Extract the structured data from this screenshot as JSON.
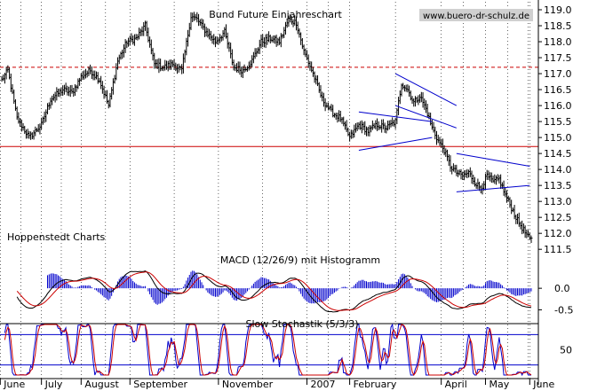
{
  "chart_data": [
    {
      "type": "candlestick",
      "title": "Bund Future Einjahreschart",
      "watermark": "www.buero-dr-schulz.de",
      "source_label": "Hoppenstedt Charts",
      "x_labels": [
        "June",
        "July",
        "August",
        "September",
        "November",
        "2007",
        "February",
        "April",
        "May",
        "June"
      ],
      "y_ticks": [
        111.5,
        112.0,
        112.5,
        113.0,
        113.5,
        114.0,
        114.5,
        115.0,
        115.5,
        116.0,
        116.5,
        117.0,
        117.5,
        118.0,
        118.5,
        119.0
      ],
      "ylim": [
        111.2,
        119.25
      ],
      "y_tick_labels": [
        "111.5",
        "112.0",
        "112.5",
        "113.0",
        "113.5",
        "114.0",
        "114.5",
        "115.0",
        "115.5",
        "116.0",
        "116.5",
        "117.0",
        "117.5",
        "118.0",
        "118.5",
        "119.0"
      ],
      "keypoints": [
        [
          0,
          116.8
        ],
        [
          4,
          117.1
        ],
        [
          10,
          115.6
        ],
        [
          18,
          115.0
        ],
        [
          26,
          115.4
        ],
        [
          32,
          116.2
        ],
        [
          40,
          116.5
        ],
        [
          46,
          116.4
        ],
        [
          52,
          116.9
        ],
        [
          58,
          117.1
        ],
        [
          64,
          116.8
        ],
        [
          70,
          116.0
        ],
        [
          76,
          117.4
        ],
        [
          82,
          118.0
        ],
        [
          88,
          118.1
        ],
        [
          94,
          118.5
        ],
        [
          100,
          117.3
        ],
        [
          106,
          117.2
        ],
        [
          112,
          117.3
        ],
        [
          118,
          117.1
        ],
        [
          124,
          118.8
        ],
        [
          128,
          118.7
        ],
        [
          134,
          118.3
        ],
        [
          140,
          118.0
        ],
        [
          146,
          118.3
        ],
        [
          152,
          117.2
        ],
        [
          158,
          117.1
        ],
        [
          164,
          117.4
        ],
        [
          170,
          118.0
        ],
        [
          176,
          118.1
        ],
        [
          182,
          118.0
        ],
        [
          188,
          118.7
        ],
        [
          193,
          118.6
        ],
        [
          198,
          117.7
        ],
        [
          204,
          117.0
        ],
        [
          210,
          116.2
        ],
        [
          216,
          115.8
        ],
        [
          222,
          115.6
        ],
        [
          228,
          115.0
        ],
        [
          234,
          115.4
        ],
        [
          240,
          115.2
        ],
        [
          246,
          115.4
        ],
        [
          252,
          115.3
        ],
        [
          258,
          115.5
        ],
        [
          262,
          116.7
        ],
        [
          266,
          116.5
        ],
        [
          270,
          116.1
        ],
        [
          274,
          116.3
        ],
        [
          278,
          115.9
        ],
        [
          282,
          115.3
        ],
        [
          286,
          114.9
        ],
        [
          290,
          114.6
        ],
        [
          294,
          114.1
        ],
        [
          298,
          113.9
        ],
        [
          302,
          113.8
        ],
        [
          306,
          113.9
        ],
        [
          310,
          113.6
        ],
        [
          314,
          113.4
        ],
        [
          318,
          113.8
        ],
        [
          322,
          113.6
        ],
        [
          326,
          113.7
        ],
        [
          330,
          113.2
        ],
        [
          334,
          112.8
        ],
        [
          338,
          112.4
        ],
        [
          342,
          112.1
        ],
        [
          346,
          111.8
        ]
      ],
      "horizontal_lines": [
        {
          "value": 117.2,
          "style": "dashed",
          "color": "#cc0000"
        },
        {
          "value": 114.72,
          "style": "solid",
          "color": "#cc0000"
        }
      ],
      "trend_lines": [
        {
          "x": [
            234,
            282
          ],
          "y": [
            115.8,
            115.5
          ]
        },
        {
          "x": [
            234,
            282
          ],
          "y": [
            114.6,
            115.0
          ]
        },
        {
          "x": [
            258,
            298
          ],
          "y": [
            117.0,
            116.0
          ]
        },
        {
          "x": [
            258,
            298
          ],
          "y": [
            116.0,
            115.3
          ]
        },
        {
          "x": [
            298,
            346
          ],
          "y": [
            114.5,
            114.1
          ]
        },
        {
          "x": [
            298,
            346
          ],
          "y": [
            113.3,
            113.5
          ]
        }
      ],
      "colors": {
        "bars": "#000000",
        "levels": "#cc0000",
        "trend": "#0000cc",
        "grid": "#000000"
      }
    },
    {
      "type": "line",
      "title": "MACD (12/26/9) mit Histogramm",
      "y_ticks": [
        0.0,
        -0.5
      ],
      "y_tick_labels": [
        "0.0",
        "-0.5"
      ],
      "ylim": [
        -0.8,
        0.6
      ],
      "colors": {
        "histogram": "#0000cc",
        "macd": "#000000",
        "signal": "#cc0000"
      }
    },
    {
      "type": "line",
      "title": "Slow Stochastik (5/3/3)",
      "y_ticks": [
        80,
        50,
        20
      ],
      "y_tick_labels": [
        "50"
      ],
      "ylim": [
        0,
        100
      ],
      "colors": {
        "k": "#0000cc",
        "d": "#cc0000",
        "levels": "#0000cc"
      }
    }
  ]
}
